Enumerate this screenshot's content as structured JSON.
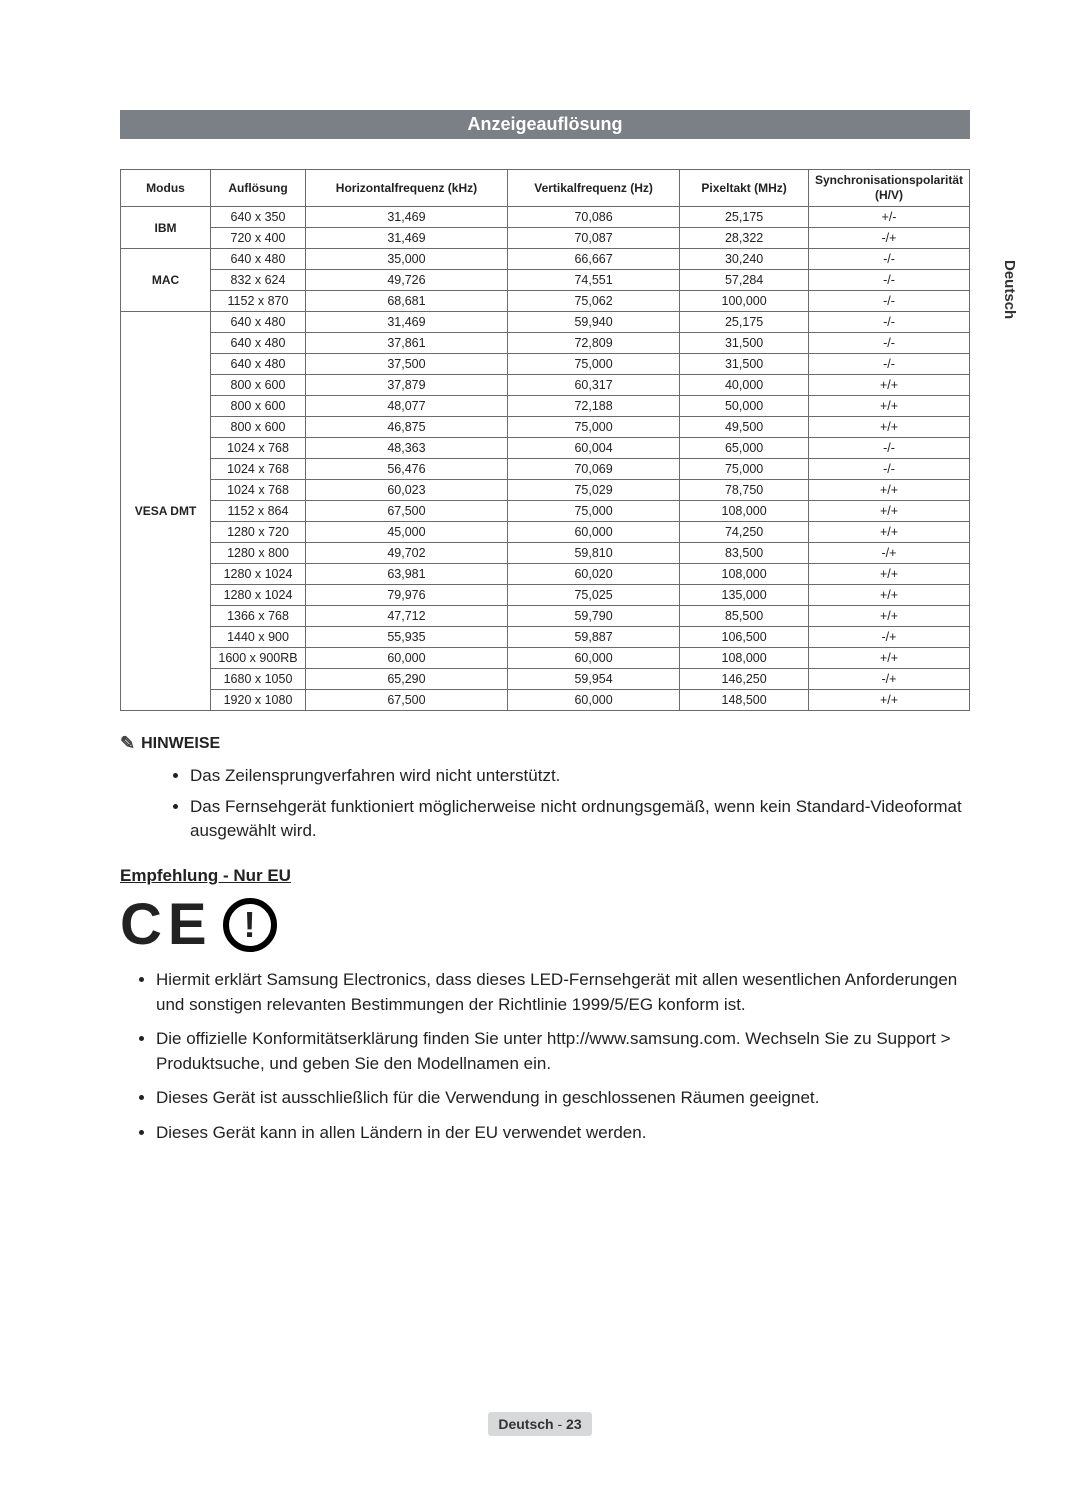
{
  "sideTab": "Deutsch",
  "banner": "Anzeigeauflösung",
  "tableHeaders": {
    "modus": "Modus",
    "auflosung": "Auflösung",
    "hfreq": "Horizontalfrequenz (kHz)",
    "vfreq": "Vertikalfrequenz (Hz)",
    "pixel": "Pixeltakt (MHz)",
    "sync": "Synchronisationspolarität (H/V)"
  },
  "modes": [
    {
      "name": "IBM",
      "rows": [
        {
          "res": "640 x 350",
          "h": "31,469",
          "v": "70,086",
          "p": "25,175",
          "s": "+/-"
        },
        {
          "res": "720 x 400",
          "h": "31,469",
          "v": "70,087",
          "p": "28,322",
          "s": "-/+"
        }
      ]
    },
    {
      "name": "MAC",
      "rows": [
        {
          "res": "640 x 480",
          "h": "35,000",
          "v": "66,667",
          "p": "30,240",
          "s": "-/-"
        },
        {
          "res": "832 x 624",
          "h": "49,726",
          "v": "74,551",
          "p": "57,284",
          "s": "-/-"
        },
        {
          "res": "1152 x 870",
          "h": "68,681",
          "v": "75,062",
          "p": "100,000",
          "s": "-/-"
        }
      ]
    },
    {
      "name": "VESA DMT",
      "rows": [
        {
          "res": "640 x 480",
          "h": "31,469",
          "v": "59,940",
          "p": "25,175",
          "s": "-/-"
        },
        {
          "res": "640 x 480",
          "h": "37,861",
          "v": "72,809",
          "p": "31,500",
          "s": "-/-"
        },
        {
          "res": "640 x 480",
          "h": "37,500",
          "v": "75,000",
          "p": "31,500",
          "s": "-/-"
        },
        {
          "res": "800 x 600",
          "h": "37,879",
          "v": "60,317",
          "p": "40,000",
          "s": "+/+"
        },
        {
          "res": "800 x 600",
          "h": "48,077",
          "v": "72,188",
          "p": "50,000",
          "s": "+/+"
        },
        {
          "res": "800 x 600",
          "h": "46,875",
          "v": "75,000",
          "p": "49,500",
          "s": "+/+"
        },
        {
          "res": "1024 x 768",
          "h": "48,363",
          "v": "60,004",
          "p": "65,000",
          "s": "-/-"
        },
        {
          "res": "1024 x 768",
          "h": "56,476",
          "v": "70,069",
          "p": "75,000",
          "s": "-/-"
        },
        {
          "res": "1024 x 768",
          "h": "60,023",
          "v": "75,029",
          "p": "78,750",
          "s": "+/+"
        },
        {
          "res": "1152 x 864",
          "h": "67,500",
          "v": "75,000",
          "p": "108,000",
          "s": "+/+"
        },
        {
          "res": "1280 x 720",
          "h": "45,000",
          "v": "60,000",
          "p": "74,250",
          "s": "+/+"
        },
        {
          "res": "1280 x 800",
          "h": "49,702",
          "v": "59,810",
          "p": "83,500",
          "s": "-/+"
        },
        {
          "res": "1280 x 1024",
          "h": "63,981",
          "v": "60,020",
          "p": "108,000",
          "s": "+/+"
        },
        {
          "res": "1280 x 1024",
          "h": "79,976",
          "v": "75,025",
          "p": "135,000",
          "s": "+/+"
        },
        {
          "res": "1366 x 768",
          "h": "47,712",
          "v": "59,790",
          "p": "85,500",
          "s": "+/+"
        },
        {
          "res": "1440 x 900",
          "h": "55,935",
          "v": "59,887",
          "p": "106,500",
          "s": "-/+"
        },
        {
          "res": "1600 x 900RB",
          "h": "60,000",
          "v": "60,000",
          "p": "108,000",
          "s": "+/+"
        },
        {
          "res": "1680 x 1050",
          "h": "65,290",
          "v": "59,954",
          "p": "146,250",
          "s": "-/+"
        },
        {
          "res": "1920 x 1080",
          "h": "67,500",
          "v": "60,000",
          "p": "148,500",
          "s": "+/+"
        }
      ]
    }
  ],
  "hinweiseLabel": "HINWEISE",
  "hinweiseItems": [
    "Das Zeilensprungverfahren wird nicht unterstützt.",
    "Das Fernsehgerät funktioniert möglicherweise nicht ordnungsgemäß, wenn kein Standard-Videoformat ausgewählt wird."
  ],
  "recoHead": "Empfehlung - Nur EU",
  "recoItems": [
    "Hiermit erklärt Samsung Electronics, dass dieses LED-Fernsehgerät mit allen wesentlichen Anforderungen und sonstigen relevanten Bestimmungen der Richtlinie 1999/5/EG konform ist.",
    "Die offizielle Konformitätserklärung finden Sie unter http://www.samsung.com. Wechseln Sie zu Support > Produktsuche, und geben Sie den Modellnamen ein.",
    "Dieses Gerät ist ausschließlich für die Verwendung in geschlossenen Räumen geeignet.",
    "Dieses Gerät kann in allen Ländern in der EU verwendet werden."
  ],
  "footer": {
    "lang": "Deutsch",
    "sep": " - ",
    "page": "23"
  },
  "colors": {
    "banner_bg": "#7a8086",
    "banner_fg": "#ffffff",
    "border": "#6b6b6b",
    "footer_bg": "#d6d8da"
  }
}
